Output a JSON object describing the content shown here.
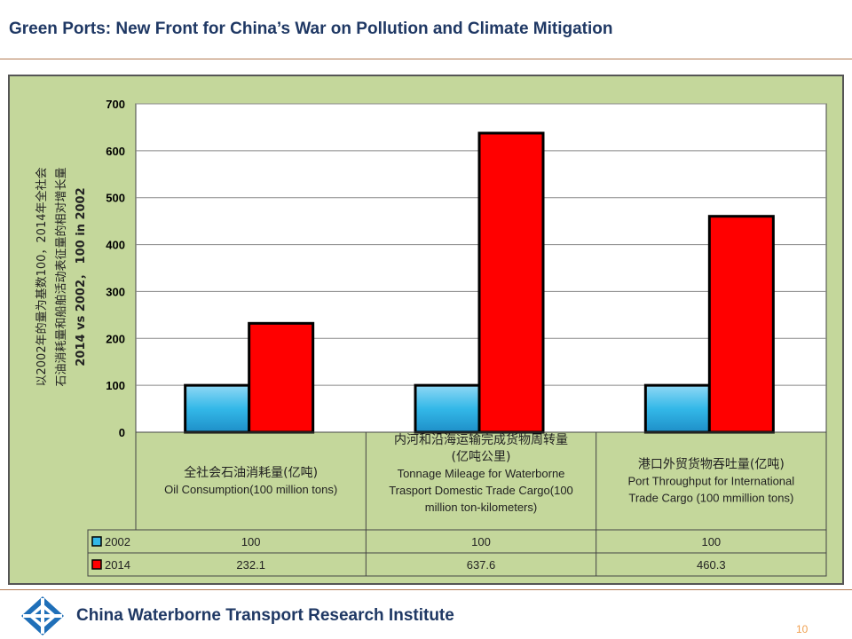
{
  "slide": {
    "title": "Green Ports: New Front for China’s War on Pollution and Climate Mitigation",
    "footer_org": "China Waterborne Transport Research Institute",
    "page_number": "10"
  },
  "colors": {
    "panel_bg": "#c4d79b",
    "plot_bg": "#ffffff",
    "series_2002": "#33b8e8",
    "series_2014": "#ff0000",
    "title_text": "#1f3864"
  },
  "chart_data": {
    "type": "bar",
    "ylabel_lines": [
      "以2002年的量为基数100，2014年全社会",
      "石油消耗量和船舶活动表征量的相对增长量",
      "2014 vs 2002， 100 in 2002"
    ],
    "ylim": [
      0,
      700
    ],
    "yticks": [
      "0",
      "100",
      "200",
      "300",
      "400",
      "500",
      "600",
      "700"
    ],
    "grid": true,
    "categories": [
      {
        "cn": "全社会石油消耗量(亿吨)",
        "en": [
          "Oil Consumption(100 million tons)"
        ]
      },
      {
        "cn": "内河和沿海运输完成货物周转量",
        "cn2": "(亿吨公里)",
        "en": [
          "Tonnage Mileage for Waterborne",
          "Trasport Domestic Trade Cargo(100",
          "million ton-kilometers)"
        ]
      },
      {
        "cn": "港口外贸货物吞吐量(亿吨)",
        "en": [
          "Port Throughput for International",
          "Trade Cargo (100 mmillion tons)"
        ]
      }
    ],
    "series": [
      {
        "name": "2002",
        "values": [
          100,
          100,
          100
        ],
        "labels": [
          "100",
          "100",
          "100"
        ]
      },
      {
        "name": "2014",
        "values": [
          232.1,
          637.6,
          460.3
        ],
        "labels": [
          "232.1",
          "637.6",
          "460.3"
        ]
      }
    ]
  }
}
